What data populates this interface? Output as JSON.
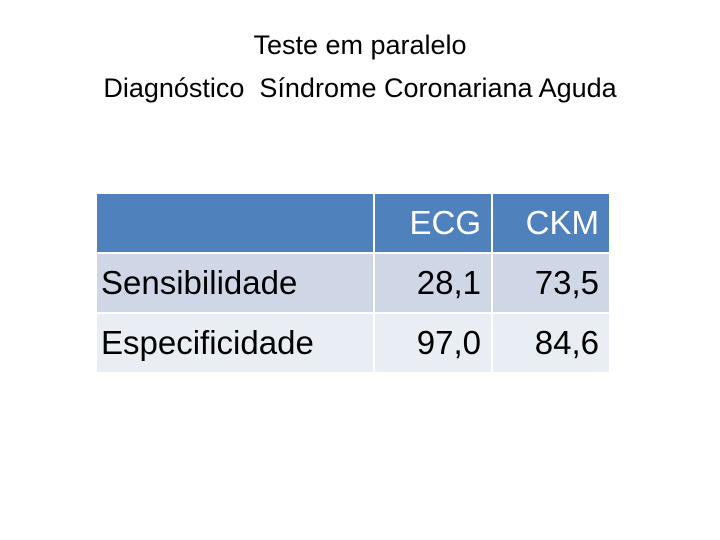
{
  "header": {
    "title_lines": [
      "Teste em paralelo",
      "Diagnóstico  Síndrome Coronariana Aguda"
    ]
  },
  "table": {
    "columns": [
      "ECG",
      "CKM"
    ],
    "rows": [
      [
        "Sensibilidade",
        "28,1",
        "73,5"
      ],
      [
        "Especificidade",
        "97,0",
        "84,6"
      ]
    ]
  }
}
